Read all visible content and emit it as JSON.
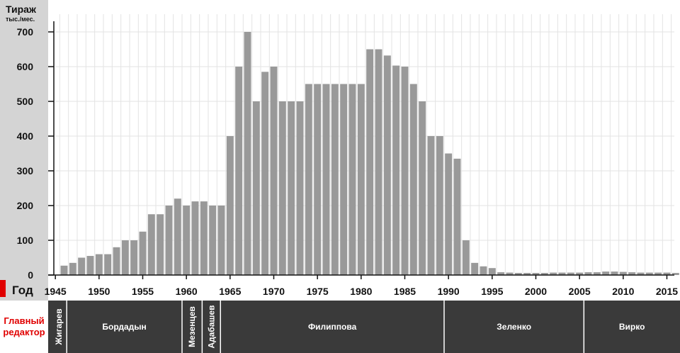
{
  "chart_data": {
    "type": "bar",
    "ylabel": "Тираж",
    "ylabel_unit": "тыс./мес.",
    "xlabel": "Год",
    "ylim": [
      0,
      740
    ],
    "yticks": [
      0,
      100,
      200,
      300,
      400,
      500,
      600,
      700
    ],
    "xticks": [
      1945,
      1950,
      1955,
      1960,
      1965,
      1970,
      1975,
      1980,
      1985,
      1990,
      1995,
      2000,
      2005,
      2010,
      2015
    ],
    "grid": true,
    "years": [
      1946,
      1947,
      1948,
      1949,
      1950,
      1951,
      1952,
      1953,
      1954,
      1955,
      1956,
      1957,
      1958,
      1959,
      1960,
      1961,
      1962,
      1963,
      1964,
      1965,
      1966,
      1967,
      1968,
      1969,
      1970,
      1971,
      1972,
      1973,
      1974,
      1975,
      1976,
      1977,
      1978,
      1979,
      1980,
      1981,
      1982,
      1983,
      1984,
      1985,
      1986,
      1987,
      1988,
      1989,
      1990,
      1991,
      1992,
      1993,
      1994,
      1995,
      1996,
      1997,
      1998,
      1999,
      2000,
      2001,
      2002,
      2003,
      2004,
      2005,
      2006,
      2007,
      2008,
      2009,
      2010,
      2011,
      2012,
      2013,
      2014,
      2015,
      2016
    ],
    "values": [
      27,
      35,
      50,
      55,
      60,
      60,
      80,
      100,
      100,
      125,
      175,
      175,
      200,
      220,
      200,
      212,
      212,
      200,
      200,
      400,
      600,
      700,
      500,
      585,
      600,
      500,
      500,
      500,
      550,
      550,
      550,
      550,
      550,
      550,
      550,
      650,
      650,
      632,
      603,
      600,
      550,
      500,
      400,
      400,
      350,
      335,
      100,
      35,
      25,
      20,
      8,
      7,
      6,
      6,
      6,
      6,
      7,
      7,
      7,
      7,
      8,
      8,
      10,
      10,
      9,
      8,
      7,
      7,
      7,
      7,
      6
    ]
  },
  "axis": {
    "ylabel": "Тираж",
    "ylabel_unit": "тыс./мес.",
    "xlabel": "Год"
  },
  "editors": {
    "header_line1": "Главный",
    "header_line2": "редактор",
    "list": [
      {
        "name": "Жигарев",
        "start": 1945,
        "end": 1946.8,
        "vertical": true
      },
      {
        "name": "Бордадын",
        "start": 1946.8,
        "end": 1960,
        "vertical": false
      },
      {
        "name": "Мезенцев",
        "start": 1960,
        "end": 1962.3,
        "vertical": true
      },
      {
        "name": "Адабашев",
        "start": 1962.3,
        "end": 1964.4,
        "vertical": true
      },
      {
        "name": "Филиппова",
        "start": 1964.4,
        "end": 1990,
        "vertical": false
      },
      {
        "name": "Зеленко",
        "start": 1990,
        "end": 2006,
        "vertical": false
      },
      {
        "name": "Вирко",
        "start": 2006,
        "end": 2018,
        "vertical": false
      }
    ]
  },
  "colors": {
    "bar": "#999999",
    "editor_band": "#3a3a3a",
    "left_panel": "#d4d4d4",
    "accent_red": "#e00000",
    "grid": "#e3e3e3"
  }
}
